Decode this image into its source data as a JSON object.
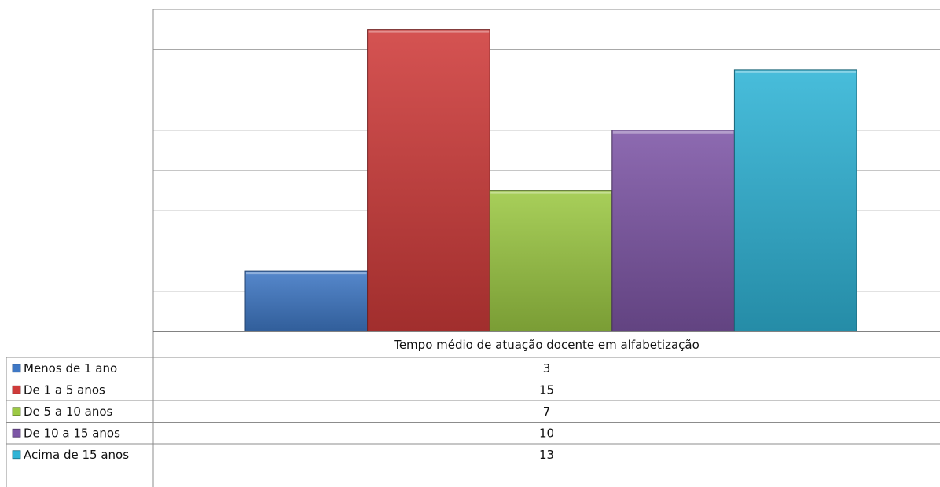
{
  "chart_data": {
    "type": "bar",
    "categories": [
      "Tempo médio de atuação docente em alfabetização"
    ],
    "series": [
      {
        "name": "Menos de 1 ano",
        "values": [
          3
        ],
        "color": "#3f78c5"
      },
      {
        "name": "De 1 a 5 anos",
        "values": [
          15
        ],
        "color": "#cf3b3a"
      },
      {
        "name": "De 5 a 10 anos",
        "values": [
          7
        ],
        "color": "#9cc944"
      },
      {
        "name": "De 10 a 15 anos",
        "values": [
          10
        ],
        "color": "#7d56a6"
      },
      {
        "name": "Acima de 15 anos",
        "values": [
          13
        ],
        "color": "#2fb4d6"
      }
    ],
    "ylim": [
      0,
      16
    ],
    "grid": true,
    "legend": "data-table"
  }
}
